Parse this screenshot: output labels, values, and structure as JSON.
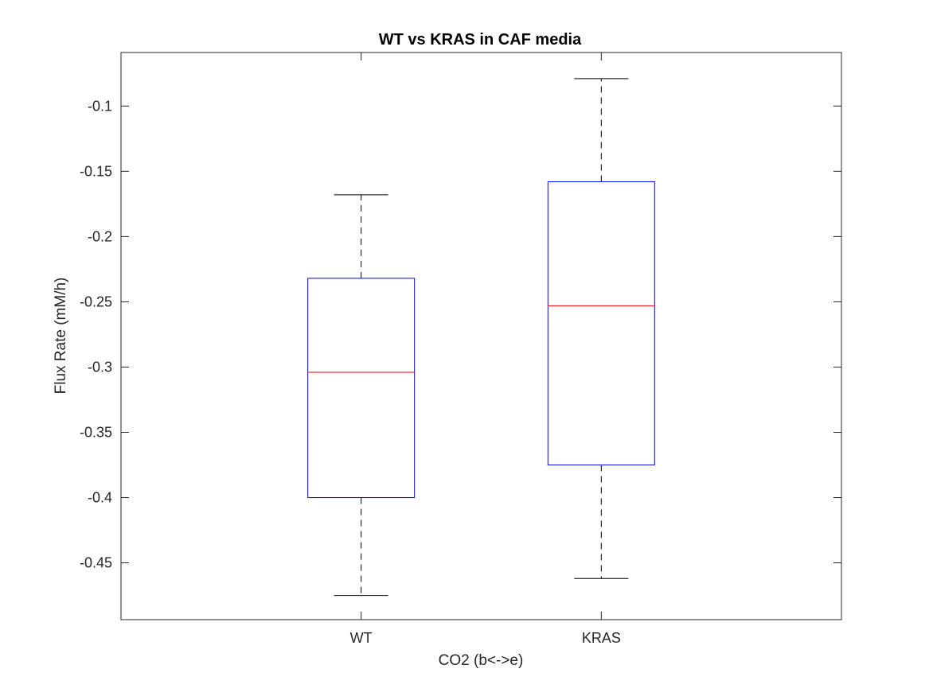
{
  "chart_data": {
    "type": "box",
    "title": "WT vs KRAS in CAF media",
    "xlabel": "CO2 (b<->e)",
    "ylabel": "Flux Rate (mM/h)",
    "categories": [
      "WT",
      "KRAS"
    ],
    "boxes": [
      {
        "name": "WT",
        "whisker_low": -0.475,
        "q1": -0.4,
        "median": -0.304,
        "q3": -0.232,
        "whisker_high": -0.168
      },
      {
        "name": "KRAS",
        "whisker_low": -0.462,
        "q1": -0.375,
        "median": -0.253,
        "q3": -0.158,
        "whisker_high": -0.079
      }
    ],
    "ylim": [
      -0.4935,
      -0.059
    ],
    "yticks": [
      -0.45,
      -0.4,
      -0.35,
      -0.3,
      -0.25,
      -0.2,
      -0.15,
      -0.1
    ],
    "ytick_labels": [
      "-0.45",
      "-0.4",
      "-0.35",
      "-0.3",
      "-0.25",
      "-0.2",
      "-0.15",
      "-0.1"
    ],
    "grid": false,
    "colors": {
      "box": "#0000ff",
      "median": "#ff0000",
      "whisker": "#000000",
      "axis": "#262626"
    }
  }
}
